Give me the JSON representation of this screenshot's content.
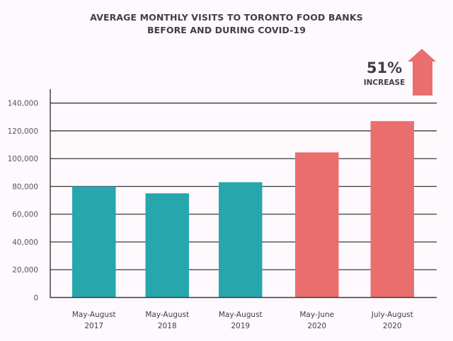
{
  "colors": {
    "background": "#fdf9fd",
    "pre_covid": "#27a6ae",
    "covid": "#ea6e6e",
    "text": "#3f3f48",
    "grid": "#3a3a3a"
  },
  "callout": {
    "percent": "51%",
    "label": "INCREASE",
    "icon": "up-arrow-icon"
  },
  "chart_data": {
    "type": "bar",
    "title": "AVERAGE MONTHLY VISITS TO TORONTO FOOD BANKS",
    "subtitle": "BEFORE AND DURING COVID-19",
    "title_lines": [
      "AVERAGE MONTHLY VISITS TO TORONTO FOOD BANKS",
      "BEFORE AND DURING COVID-19"
    ],
    "categories": [
      [
        "May-August",
        "2017"
      ],
      [
        "May-August",
        "2018"
      ],
      [
        "May-August",
        "2019"
      ],
      [
        "May-June",
        "2020"
      ],
      [
        "July-August",
        "2020"
      ]
    ],
    "values": [
      80000,
      75000,
      83000,
      104500,
      127000
    ],
    "period": [
      "pre-covid",
      "pre-covid",
      "pre-covid",
      "covid",
      "covid"
    ],
    "xlabel": "",
    "ylabel": "",
    "ylim": [
      0,
      140000
    ],
    "yticks": [
      0,
      20000,
      40000,
      60000,
      80000,
      100000,
      120000,
      140000
    ],
    "ytick_labels": [
      "0",
      "20,000",
      "40,000",
      "60,000",
      "80,000",
      "100,000",
      "120,000",
      "140,000"
    ],
    "grid": true,
    "annotation": "51% INCREASE"
  }
}
